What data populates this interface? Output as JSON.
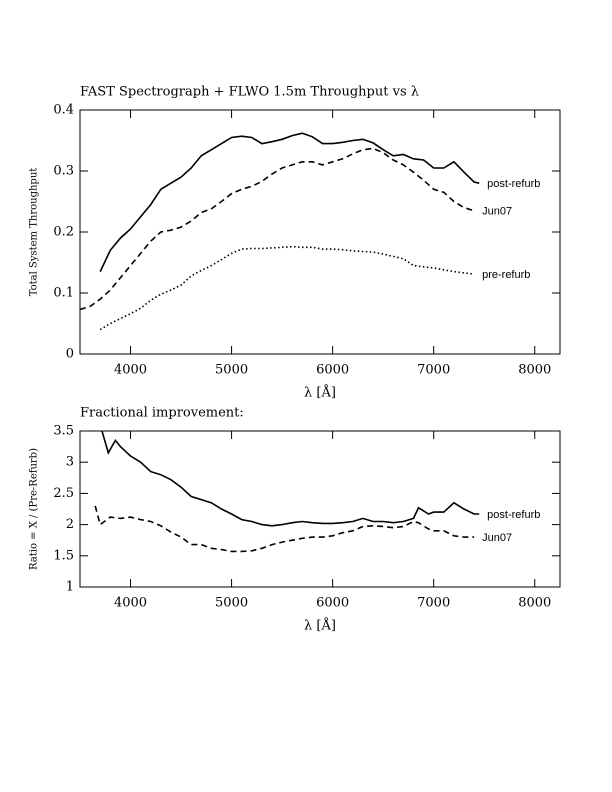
{
  "chart_data": [
    {
      "type": "line",
      "title": "FAST Spectrograph + FLWO 1.5m Throughput vs λ",
      "xlabel": "λ [Å]",
      "ylabel": "Total System Throughput",
      "xlim": [
        3500,
        8250
      ],
      "ylim": [
        0,
        0.4
      ],
      "xticks": [
        4000,
        5000,
        6000,
        7000,
        8000
      ],
      "yticks": [
        0,
        0.1,
        0.2,
        0.3,
        0.4
      ],
      "series": [
        {
          "name": "post-refurb",
          "color": "#000000",
          "dash": "solid",
          "x": [
            3700,
            3800,
            3900,
            4000,
            4100,
            4200,
            4300,
            4400,
            4500,
            4600,
            4700,
            4800,
            4900,
            5000,
            5100,
            5200,
            5300,
            5400,
            5500,
            5600,
            5700,
            5800,
            5900,
            6000,
            6100,
            6200,
            6300,
            6400,
            6500,
            6600,
            6700,
            6800,
            6900,
            7000,
            7100,
            7200,
            7300,
            7400,
            7450
          ],
          "values": [
            0.135,
            0.17,
            0.19,
            0.205,
            0.225,
            0.245,
            0.27,
            0.28,
            0.29,
            0.305,
            0.325,
            0.335,
            0.345,
            0.355,
            0.357,
            0.355,
            0.345,
            0.348,
            0.352,
            0.358,
            0.362,
            0.356,
            0.345,
            0.345,
            0.347,
            0.35,
            0.352,
            0.346,
            0.335,
            0.325,
            0.327,
            0.32,
            0.318,
            0.305,
            0.305,
            0.315,
            0.298,
            0.282,
            0.28
          ]
        },
        {
          "name": "Jun07",
          "color": "#000000",
          "dash": "dashed",
          "x": [
            3500,
            3600,
            3700,
            3800,
            3900,
            4000,
            4100,
            4200,
            4300,
            4400,
            4500,
            4600,
            4700,
            4800,
            4900,
            5000,
            5100,
            5200,
            5300,
            5400,
            5500,
            5600,
            5700,
            5800,
            5900,
            6000,
            6100,
            6200,
            6300,
            6400,
            6500,
            6600,
            6700,
            6800,
            6900,
            7000,
            7100,
            7200,
            7300,
            7400
          ],
          "values": [
            0.073,
            0.078,
            0.09,
            0.105,
            0.125,
            0.145,
            0.165,
            0.185,
            0.2,
            0.203,
            0.208,
            0.218,
            0.232,
            0.238,
            0.25,
            0.263,
            0.27,
            0.275,
            0.283,
            0.295,
            0.305,
            0.31,
            0.315,
            0.315,
            0.31,
            0.315,
            0.32,
            0.328,
            0.335,
            0.337,
            0.33,
            0.318,
            0.31,
            0.298,
            0.285,
            0.27,
            0.265,
            0.25,
            0.24,
            0.235
          ]
        },
        {
          "name": "pre-refurb",
          "color": "#000000",
          "dash": "dotted",
          "x": [
            3700,
            3800,
            3900,
            4000,
            4100,
            4200,
            4300,
            4400,
            4500,
            4600,
            4700,
            4800,
            4900,
            5000,
            5100,
            5200,
            5300,
            5400,
            5500,
            5600,
            5700,
            5800,
            5900,
            6000,
            6100,
            6200,
            6300,
            6400,
            6500,
            6600,
            6700,
            6800,
            6900,
            7000,
            7100,
            7200,
            7300,
            7400
          ],
          "values": [
            0.04,
            0.05,
            0.058,
            0.066,
            0.075,
            0.088,
            0.098,
            0.105,
            0.113,
            0.128,
            0.137,
            0.145,
            0.155,
            0.165,
            0.172,
            0.173,
            0.173,
            0.174,
            0.175,
            0.176,
            0.175,
            0.175,
            0.172,
            0.172,
            0.171,
            0.169,
            0.168,
            0.167,
            0.164,
            0.16,
            0.156,
            0.145,
            0.143,
            0.141,
            0.138,
            0.135,
            0.133,
            0.131
          ]
        }
      ]
    },
    {
      "type": "line",
      "title": "Fractional improvement:",
      "xlabel": "λ [Å]",
      "ylabel": "Ratio = X / (Pre-Refurb)",
      "xlim": [
        3500,
        8250
      ],
      "ylim": [
        1,
        3.5
      ],
      "xticks": [
        4000,
        5000,
        6000,
        7000,
        8000
      ],
      "yticks": [
        1,
        1.5,
        2,
        2.5,
        3,
        3.5
      ],
      "series": [
        {
          "name": "post-refurb",
          "color": "#000000",
          "dash": "solid",
          "x": [
            3700,
            3780,
            3850,
            3900,
            4000,
            4100,
            4200,
            4300,
            4400,
            4500,
            4600,
            4700,
            4800,
            4900,
            5000,
            5100,
            5200,
            5300,
            5400,
            5500,
            5600,
            5700,
            5800,
            5900,
            6000,
            6100,
            6200,
            6300,
            6400,
            6500,
            6600,
            6700,
            6800,
            6850,
            6950,
            7000,
            7100,
            7200,
            7300,
            7400,
            7450
          ],
          "values": [
            3.6,
            3.15,
            3.35,
            3.25,
            3.1,
            3.0,
            2.85,
            2.8,
            2.72,
            2.6,
            2.45,
            2.4,
            2.35,
            2.25,
            2.17,
            2.08,
            2.05,
            2.0,
            1.98,
            2.0,
            2.03,
            2.05,
            2.03,
            2.02,
            2.02,
            2.03,
            2.05,
            2.1,
            2.05,
            2.05,
            2.03,
            2.05,
            2.1,
            2.27,
            2.17,
            2.2,
            2.2,
            2.35,
            2.25,
            2.17,
            2.17
          ]
        },
        {
          "name": "Jun07",
          "color": "#000000",
          "dash": "dashed",
          "x": [
            3650,
            3700,
            3800,
            3900,
            4000,
            4100,
            4200,
            4300,
            4400,
            4500,
            4600,
            4700,
            4800,
            4900,
            5000,
            5100,
            5200,
            5300,
            5400,
            5500,
            5600,
            5700,
            5800,
            5900,
            6000,
            6100,
            6200,
            6300,
            6400,
            6500,
            6600,
            6700,
            6800,
            6850,
            6950,
            7000,
            7100,
            7200,
            7300,
            7400
          ],
          "values": [
            2.3,
            2.0,
            2.12,
            2.1,
            2.12,
            2.08,
            2.05,
            1.98,
            1.88,
            1.8,
            1.68,
            1.68,
            1.62,
            1.6,
            1.57,
            1.57,
            1.58,
            1.62,
            1.68,
            1.72,
            1.75,
            1.78,
            1.8,
            1.8,
            1.82,
            1.87,
            1.9,
            1.97,
            1.98,
            1.97,
            1.95,
            1.97,
            2.05,
            2.03,
            1.93,
            1.9,
            1.9,
            1.82,
            1.8,
            1.8
          ]
        }
      ]
    }
  ]
}
